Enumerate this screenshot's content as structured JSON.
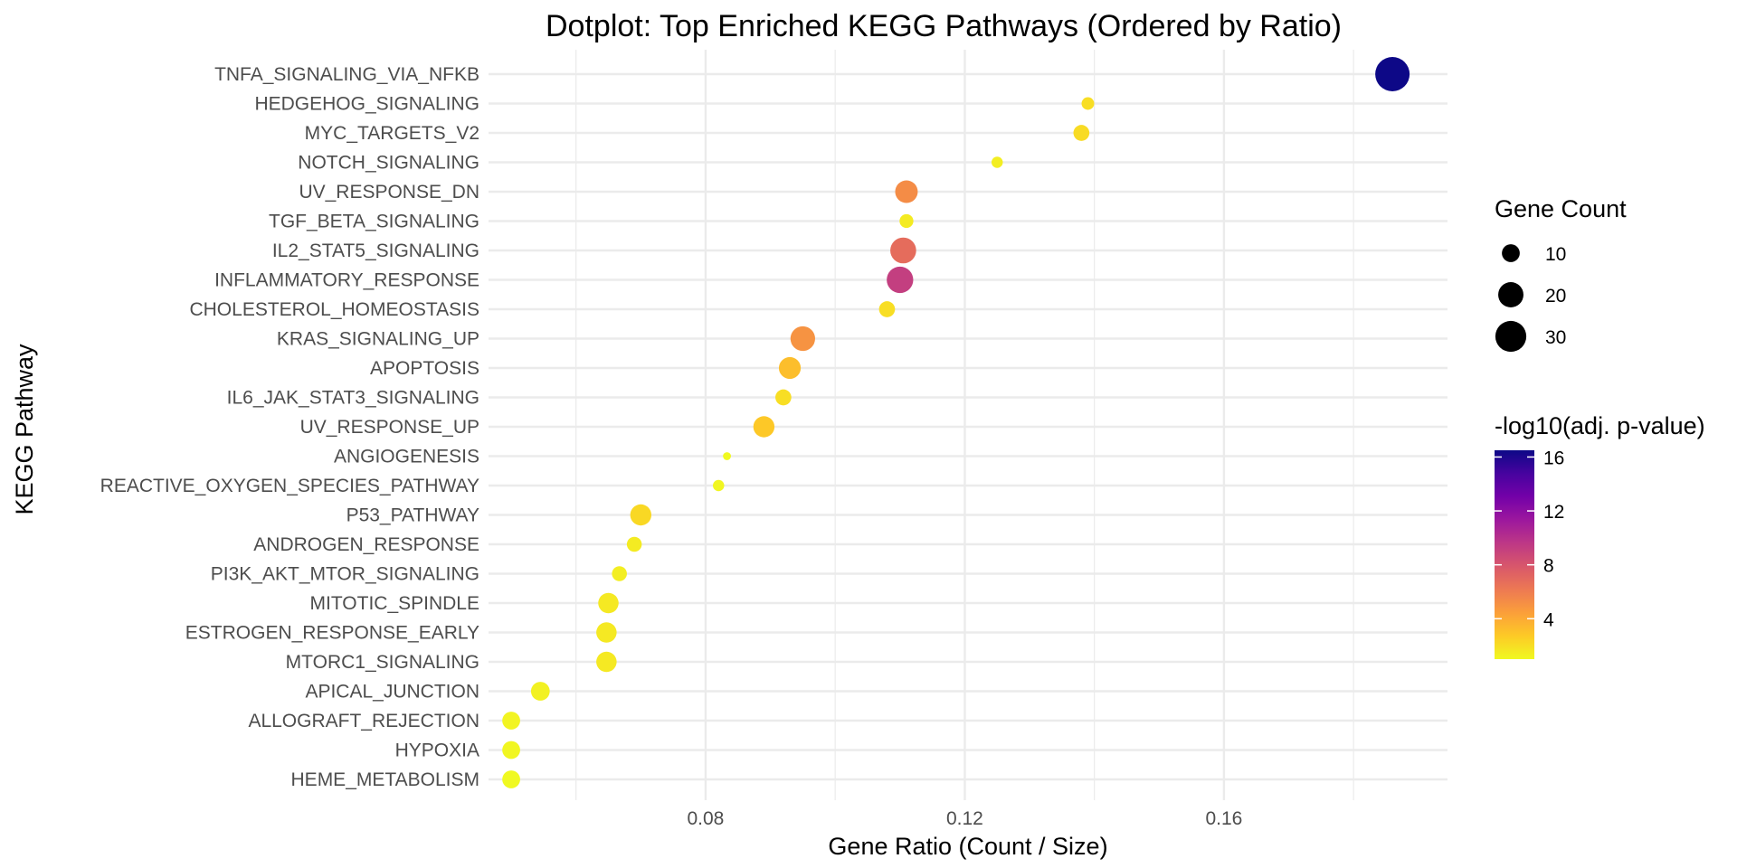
{
  "chart_data": {
    "type": "scatter",
    "title": "Dotplot: Top Enriched KEGG Pathways (Ordered by Ratio)",
    "xlabel": "Gene Ratio (Count / Size)",
    "ylabel": "KEGG Pathway",
    "xlim": [
      0.0465,
      0.1945
    ],
    "x_ticks": [
      0.08,
      0.12,
      0.16
    ],
    "x_tick_labels": [
      "0.08",
      "0.12",
      "0.16"
    ],
    "grid": true,
    "points": [
      {
        "pathway": "TNFA_SIGNALING_VIA_NFKB",
        "ratio": 0.186,
        "count": 37,
        "neglog10_padj": 16.5
      },
      {
        "pathway": "HEDGEHOG_SIGNALING",
        "ratio": 0.139,
        "count": 5,
        "neglog10_padj": 2.0
      },
      {
        "pathway": "MYC_TARGETS_V2",
        "ratio": 0.138,
        "count": 8,
        "neglog10_padj": 2.1
      },
      {
        "pathway": "NOTCH_SIGNALING",
        "ratio": 0.125,
        "count": 4,
        "neglog10_padj": 1.4
      },
      {
        "pathway": "UV_RESPONSE_DN",
        "ratio": 0.111,
        "count": 16,
        "neglog10_padj": 5.3
      },
      {
        "pathway": "TGF_BETA_SIGNALING",
        "ratio": 0.111,
        "count": 6,
        "neglog10_padj": 1.5
      },
      {
        "pathway": "IL2_STAT5_SIGNALING",
        "ratio": 0.1105,
        "count": 21,
        "neglog10_padj": 6.8
      },
      {
        "pathway": "INFLAMMATORY_RESPONSE",
        "ratio": 0.11,
        "count": 22,
        "neglog10_padj": 9.2
      },
      {
        "pathway": "CHOLESTEROL_HOMEOSTASIS",
        "ratio": 0.108,
        "count": 8,
        "neglog10_padj": 2.0
      },
      {
        "pathway": "KRAS_SIGNALING_UP",
        "ratio": 0.095,
        "count": 19,
        "neglog10_padj": 5.0
      },
      {
        "pathway": "APOPTOSIS",
        "ratio": 0.093,
        "count": 15,
        "neglog10_padj": 3.2
      },
      {
        "pathway": "IL6_JAK_STAT3_SIGNALING",
        "ratio": 0.092,
        "count": 8,
        "neglog10_padj": 2.0
      },
      {
        "pathway": "UV_RESPONSE_UP",
        "ratio": 0.089,
        "count": 14,
        "neglog10_padj": 2.8
      },
      {
        "pathway": "ANGIOGENESIS",
        "ratio": 0.0833,
        "count": 2,
        "neglog10_padj": 1.0
      },
      {
        "pathway": "REACTIVE_OXYGEN_SPECIES_PATHWAY",
        "ratio": 0.082,
        "count": 4,
        "neglog10_padj": 1.1
      },
      {
        "pathway": "P53_PATHWAY",
        "ratio": 0.07,
        "count": 14,
        "neglog10_padj": 2.2
      },
      {
        "pathway": "ANDROGEN_RESPONSE",
        "ratio": 0.069,
        "count": 7,
        "neglog10_padj": 1.5
      },
      {
        "pathway": "PI3K_AKT_MTOR_SIGNALING",
        "ratio": 0.0667,
        "count": 7,
        "neglog10_padj": 1.4
      },
      {
        "pathway": "MITOTIC_SPINDLE",
        "ratio": 0.065,
        "count": 13,
        "neglog10_padj": 1.6
      },
      {
        "pathway": "ESTROGEN_RESPONSE_EARLY",
        "ratio": 0.0647,
        "count": 13,
        "neglog10_padj": 1.6
      },
      {
        "pathway": "MTORC1_SIGNALING",
        "ratio": 0.0647,
        "count": 13,
        "neglog10_padj": 1.6
      },
      {
        "pathway": "APICAL_JUNCTION",
        "ratio": 0.0545,
        "count": 11,
        "neglog10_padj": 1.3
      },
      {
        "pathway": "ALLOGRAFT_REJECTION",
        "ratio": 0.05,
        "count": 10,
        "neglog10_padj": 1.2
      },
      {
        "pathway": "HYPOXIA",
        "ratio": 0.05,
        "count": 10,
        "neglog10_padj": 1.1
      },
      {
        "pathway": "HEME_METABOLISM",
        "ratio": 0.05,
        "count": 10,
        "neglog10_padj": 1.0
      }
    ],
    "size_legend": {
      "title": "Gene Count",
      "values": [
        10,
        20,
        30
      ],
      "labels": [
        "10",
        "20",
        "30"
      ]
    },
    "color_legend": {
      "title": "-log10(adj. p-value)",
      "range": [
        1.0,
        16.5
      ],
      "breaks": [
        4,
        8,
        12,
        16
      ],
      "labels": [
        "4",
        "8",
        "12",
        "16"
      ],
      "palette": [
        "#0d0887",
        "#47039f",
        "#7301a8",
        "#9c179e",
        "#bd3786",
        "#d8576b",
        "#ed7953",
        "#fb9f3a",
        "#fdca26",
        "#f0f921"
      ]
    }
  }
}
